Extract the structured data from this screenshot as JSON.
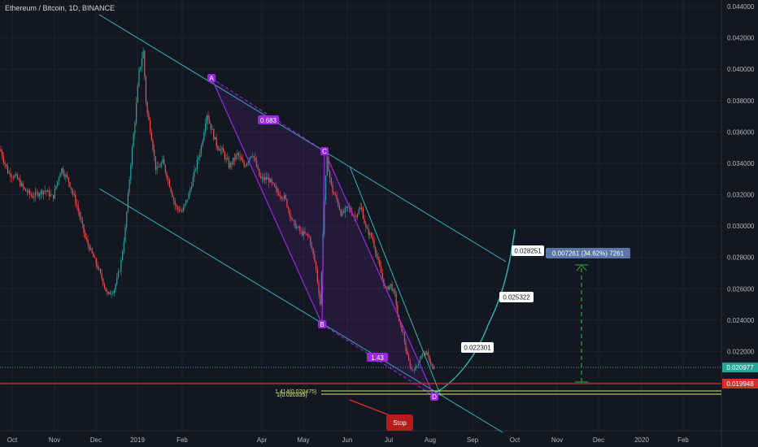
{
  "header": {
    "title": "Ethereum / Bitcoin, 1D, BINANCE"
  },
  "colors": {
    "background": "#131722",
    "up": "#26a69a",
    "down": "#ef5350",
    "channel": "#2bb7b4",
    "pattern": "#9c27e0",
    "stop": "#d32f2f",
    "current_price": "#26a69a",
    "fib": "#c6e86e",
    "measure": "#1e9b3a",
    "range_tag": "#5a77a8"
  },
  "chart_data": {
    "type": "candlestick",
    "symbol": "Ethereum / Bitcoin",
    "interval": "1D",
    "exchange": "BINANCE",
    "x_ticks": [
      "Oct",
      "Nov",
      "Dec",
      "2019",
      "Feb",
      "Apr",
      "May",
      "Jun",
      "Jul",
      "Aug",
      "Sep",
      "Oct",
      "Nov",
      "Dec",
      "2020",
      "Feb"
    ],
    "y_ticks": [
      "0.044000",
      "0.042000",
      "0.040000",
      "0.038000",
      "0.036000",
      "0.034000",
      "0.032000",
      "0.030000",
      "0.028000",
      "0.026000",
      "0.024000",
      "0.022000",
      "0.020000"
    ],
    "ylim": [
      0.0194,
      0.0443
    ],
    "price_path": [
      [
        0.0,
        0.0349
      ],
      [
        10,
        0.0334
      ],
      [
        20,
        0.0331
      ],
      [
        30,
        0.0323
      ],
      [
        40,
        0.0319
      ],
      [
        55,
        0.0323
      ],
      [
        65,
        0.0318
      ],
      [
        75,
        0.0337
      ],
      [
        85,
        0.0328
      ],
      [
        95,
        0.0312
      ],
      [
        105,
        0.0292
      ],
      [
        115,
        0.028
      ],
      [
        125,
        0.0267
      ],
      [
        132,
        0.0256
      ],
      [
        140,
        0.0259
      ],
      [
        148,
        0.0274
      ],
      [
        154,
        0.0298
      ],
      [
        160,
        0.0336
      ],
      [
        166,
        0.0368
      ],
      [
        171,
        0.0398
      ],
      [
        176,
        0.0412
      ],
      [
        180,
        0.0375
      ],
      [
        186,
        0.0358
      ],
      [
        192,
        0.0335
      ],
      [
        200,
        0.0341
      ],
      [
        208,
        0.0327
      ],
      [
        216,
        0.0312
      ],
      [
        224,
        0.0309
      ],
      [
        232,
        0.032
      ],
      [
        240,
        0.0336
      ],
      [
        248,
        0.0352
      ],
      [
        254,
        0.0372
      ],
      [
        260,
        0.0362
      ],
      [
        266,
        0.0352
      ],
      [
        274,
        0.0347
      ],
      [
        282,
        0.0338
      ],
      [
        292,
        0.0346
      ],
      [
        300,
        0.0338
      ],
      [
        310,
        0.0347
      ],
      [
        320,
        0.033
      ],
      [
        330,
        0.033
      ],
      [
        340,
        0.0322
      ],
      [
        350,
        0.0318
      ],
      [
        360,
        0.0302
      ],
      [
        370,
        0.0296
      ],
      [
        380,
        0.0293
      ],
      [
        388,
        0.0275
      ],
      [
        394,
        0.0249
      ],
      [
        398,
        0.031
      ],
      [
        402,
        0.0343
      ],
      [
        408,
        0.0323
      ],
      [
        414,
        0.0317
      ],
      [
        420,
        0.0307
      ],
      [
        428,
        0.0312
      ],
      [
        436,
        0.0306
      ],
      [
        444,
        0.0312
      ],
      [
        450,
        0.0298
      ],
      [
        458,
        0.0292
      ],
      [
        466,
        0.0275
      ],
      [
        474,
        0.0259
      ],
      [
        480,
        0.0263
      ],
      [
        486,
        0.0255
      ],
      [
        490,
        0.0239
      ],
      [
        496,
        0.0231
      ],
      [
        500,
        0.0218
      ],
      [
        506,
        0.0208
      ],
      [
        512,
        0.021
      ],
      [
        518,
        0.0218
      ],
      [
        524,
        0.0219
      ],
      [
        530,
        0.0212
      ],
      [
        534,
        0.0207
      ]
    ],
    "current_price": "0.020977",
    "stop_price": "0.019948",
    "stop_label": "Stop",
    "pattern_points": [
      {
        "label": "A",
        "x": "Feb",
        "y": 0.0393
      },
      {
        "label": "B",
        "x": "May",
        "y": 0.0247
      },
      {
        "label": "C",
        "x": "May",
        "y": 0.0353
      },
      {
        "label": "D",
        "x": "Aug",
        "y": 0.0196
      }
    ],
    "pattern_ratios": [
      "0.683",
      "1.43"
    ],
    "fib_labels": [
      "1.414(0.020475)",
      "1(0.020335)"
    ],
    "projection_targets": [
      "0.022301",
      "0.025322",
      "0.028251"
    ],
    "measure_label": "0.007261 (34.62%) 7261"
  }
}
